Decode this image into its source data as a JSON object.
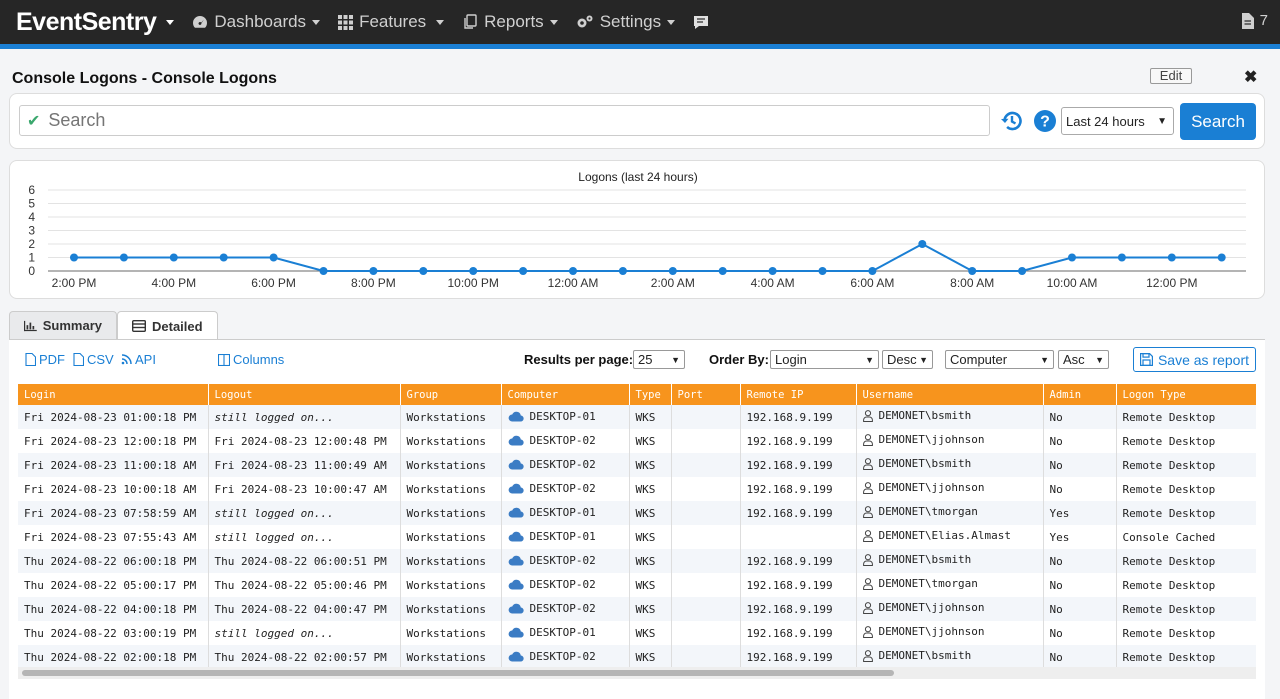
{
  "nav": {
    "brand": "EventSentry",
    "items": [
      {
        "label": "Dashboards",
        "icon": "gauge-icon"
      },
      {
        "label": "Features",
        "icon": "grid-icon"
      },
      {
        "label": "Reports",
        "icon": "reports-icon"
      },
      {
        "label": "Settings",
        "icon": "gears-icon"
      }
    ],
    "chat_icon": "chat-icon",
    "notifications_count": "7"
  },
  "page": {
    "title": "Console Logons - Console Logons",
    "edit_label": "Edit",
    "close_label": "✖"
  },
  "search": {
    "placeholder": "Search",
    "time_range": "Last 24 hours",
    "button_label": "Search"
  },
  "chart_data": {
    "type": "line",
    "title": "Logons (last 24 hours)",
    "xlabel": "",
    "ylabel": "",
    "ylim": [
      0,
      6
    ],
    "yticks": [
      "0",
      "1",
      "2",
      "3",
      "4",
      "5",
      "6"
    ],
    "xticks": [
      "2:00 PM",
      "4:00 PM",
      "6:00 PM",
      "8:00 PM",
      "10:00 PM",
      "12:00 AM",
      "2:00 AM",
      "4:00 AM",
      "6:00 AM",
      "8:00 AM",
      "10:00 AM",
      "12:00 PM"
    ],
    "values": [
      1,
      1,
      1,
      1,
      1,
      0,
      0,
      0,
      0,
      0,
      0,
      0,
      0,
      0,
      0,
      0,
      0,
      2,
      0,
      0,
      1,
      1,
      1,
      1
    ],
    "color": "#1a7fd4",
    "grid": true,
    "legend": "none"
  },
  "tabs": [
    {
      "label": "Summary",
      "icon": "bar-chart-icon",
      "active": false
    },
    {
      "label": "Detailed",
      "icon": "list-icon",
      "active": true
    }
  ],
  "toolbar": {
    "pdf": "PDF",
    "csv": "CSV",
    "api": "API",
    "columns": "Columns",
    "results_label": "Results per page:",
    "results_value": "25",
    "order_label": "Order By:",
    "order1": "Login",
    "dir1": "Desc",
    "order2": "Computer",
    "dir2": "Asc",
    "save_report": "Save as report"
  },
  "table": {
    "columns": [
      "Login",
      "Logout",
      "Group",
      "Computer",
      "Type",
      "Port",
      "Remote IP",
      "Username",
      "Admin",
      "Logon Type"
    ],
    "rows": [
      [
        "Fri 2024-08-23 01:00:18 PM",
        "still logged on...",
        "Workstations",
        "DESKTOP-01",
        "WKS",
        "",
        "192.168.9.199",
        "DEMONET\\bsmith",
        "No",
        "Remote Desktop"
      ],
      [
        "Fri 2024-08-23 12:00:18 PM",
        "Fri 2024-08-23 12:00:48 PM",
        "Workstations",
        "DESKTOP-02",
        "WKS",
        "",
        "192.168.9.199",
        "DEMONET\\jjohnson",
        "No",
        "Remote Desktop"
      ],
      [
        "Fri 2024-08-23 11:00:18 AM",
        "Fri 2024-08-23 11:00:49 AM",
        "Workstations",
        "DESKTOP-02",
        "WKS",
        "",
        "192.168.9.199",
        "DEMONET\\bsmith",
        "No",
        "Remote Desktop"
      ],
      [
        "Fri 2024-08-23 10:00:18 AM",
        "Fri 2024-08-23 10:00:47 AM",
        "Workstations",
        "DESKTOP-02",
        "WKS",
        "",
        "192.168.9.199",
        "DEMONET\\jjohnson",
        "No",
        "Remote Desktop"
      ],
      [
        "Fri 2024-08-23 07:58:59 AM",
        "still logged on...",
        "Workstations",
        "DESKTOP-01",
        "WKS",
        "",
        "192.168.9.199",
        "DEMONET\\tmorgan",
        "Yes",
        "Remote Desktop"
      ],
      [
        "Fri 2024-08-23 07:55:43 AM",
        "still logged on...",
        "Workstations",
        "DESKTOP-01",
        "WKS",
        "",
        "",
        "DEMONET\\Elias.Almast",
        "Yes",
        "Console Cached"
      ],
      [
        "Thu 2024-08-22 06:00:18 PM",
        "Thu 2024-08-22 06:00:51 PM",
        "Workstations",
        "DESKTOP-02",
        "WKS",
        "",
        "192.168.9.199",
        "DEMONET\\bsmith",
        "No",
        "Remote Desktop"
      ],
      [
        "Thu 2024-08-22 05:00:17 PM",
        "Thu 2024-08-22 05:00:46 PM",
        "Workstations",
        "DESKTOP-02",
        "WKS",
        "",
        "192.168.9.199",
        "DEMONET\\tmorgan",
        "No",
        "Remote Desktop"
      ],
      [
        "Thu 2024-08-22 04:00:18 PM",
        "Thu 2024-08-22 04:00:47 PM",
        "Workstations",
        "DESKTOP-02",
        "WKS",
        "",
        "192.168.9.199",
        "DEMONET\\jjohnson",
        "No",
        "Remote Desktop"
      ],
      [
        "Thu 2024-08-22 03:00:19 PM",
        "still logged on...",
        "Workstations",
        "DESKTOP-01",
        "WKS",
        "",
        "192.168.9.199",
        "DEMONET\\jjohnson",
        "No",
        "Remote Desktop"
      ],
      [
        "Thu 2024-08-22 02:00:18 PM",
        "Thu 2024-08-22 02:00:57 PM",
        "Workstations",
        "DESKTOP-02",
        "WKS",
        "",
        "192.168.9.199",
        "DEMONET\\bsmith",
        "No",
        "Remote Desktop"
      ]
    ]
  },
  "colors": {
    "accent": "#1a7fd4",
    "header_orange": "#f7941d",
    "navbar": "#262626"
  }
}
